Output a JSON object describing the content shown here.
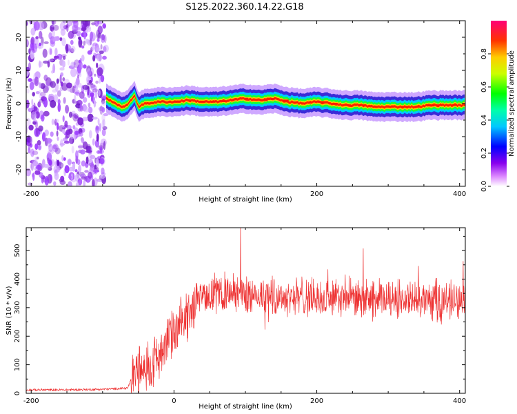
{
  "chart_data": [
    {
      "type": "heatmap",
      "title": "S125.2022.360.14.22.G18",
      "xlabel": "Height of straight line (km)",
      "ylabel": "Frequency (Hz)",
      "xlim": [
        -207,
        408
      ],
      "ylim": [
        -25,
        25
      ],
      "xticks": [
        -200,
        0,
        200,
        400
      ],
      "yticks": [
        -20,
        -10,
        0,
        10,
        20
      ],
      "colorbar": {
        "label": "Normalized spectral amplitude",
        "range": [
          0,
          1
        ],
        "ticks": [
          0.0,
          0.2,
          0.4,
          0.6,
          0.8
        ]
      },
      "noise_region_x": [
        -207,
        -95
      ],
      "ridge": {
        "x": [
          -95,
          -85,
          -75,
          -65,
          -55,
          -50,
          -40,
          -20,
          0,
          20,
          40,
          60,
          80,
          100,
          120,
          140,
          160,
          180,
          200,
          220,
          240,
          260,
          280,
          300,
          320,
          340,
          360,
          380,
          400,
          408
        ],
        "freq": [
          1.5,
          0.5,
          -1.0,
          -0.5,
          2.5,
          -1.0,
          0.0,
          0.5,
          0.5,
          1.0,
          0.5,
          0.5,
          1.0,
          1.5,
          1.0,
          1.5,
          0.5,
          0.0,
          0.5,
          0.0,
          -0.5,
          -0.5,
          -1.0,
          -1.0,
          -1.0,
          -1.0,
          -0.5,
          -0.5,
          -0.5,
          -0.5
        ]
      }
    },
    {
      "type": "line",
      "xlabel": "Height of straight line (km)",
      "ylabel": "SNR (10 * v/v)",
      "xlim": [
        -207,
        408
      ],
      "ylim": [
        0,
        580
      ],
      "xticks": [
        -200,
        0,
        200,
        400
      ],
      "yticks": [
        0,
        100,
        200,
        300,
        400,
        500
      ],
      "color": "#ee3333",
      "trend": {
        "x": [
          -207,
          -150,
          -100,
          -65,
          -58,
          -50,
          -40,
          -30,
          -20,
          -10,
          0,
          10,
          20,
          30,
          40,
          60,
          80,
          100,
          150,
          200,
          250,
          300,
          350,
          400,
          408
        ],
        "y": [
          12,
          12,
          14,
          18,
          60,
          70,
          90,
          110,
          140,
          170,
          200,
          240,
          280,
          320,
          345,
          350,
          350,
          345,
          340,
          335,
          330,
          330,
          325,
          330,
          330
        ]
      },
      "spike": {
        "x": 93,
        "y": 580
      }
    }
  ]
}
